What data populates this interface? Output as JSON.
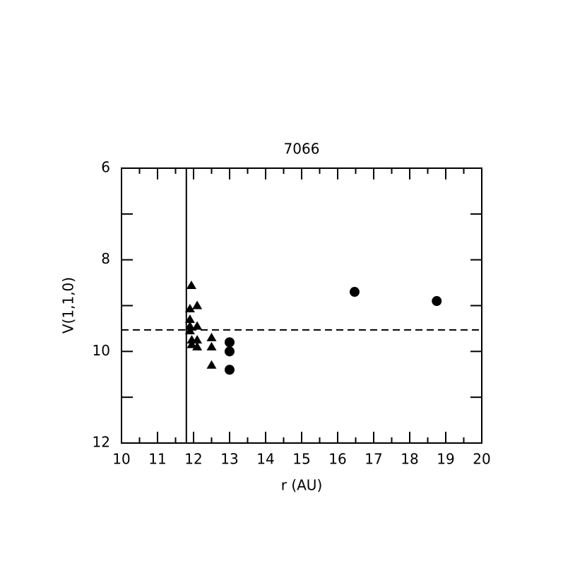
{
  "chart_data": {
    "type": "scatter",
    "title": "7066",
    "x_label": "r (AU)",
    "y_label": "V(1,1,0)",
    "xlim": [
      10,
      20
    ],
    "xticks": [
      10,
      11,
      12,
      13,
      14,
      15,
      16,
      17,
      18,
      19,
      20
    ],
    "xminorticks": [
      10.5,
      11.5,
      12.5,
      13.5,
      14.5,
      15.5,
      16.5,
      17.5,
      18.5,
      19.5
    ],
    "ylim": [
      12,
      6
    ],
    "yticks": [
      6,
      8,
      10,
      12
    ],
    "yminorticks": [
      7,
      9,
      11
    ],
    "vline": 11.8,
    "hline": 9.53,
    "series": [
      {
        "marker": "triangle",
        "color": "#000000",
        "x": [
          11.94,
          12.1,
          11.9,
          11.9,
          12.1,
          11.9,
          11.9,
          11.95,
          12.1,
          11.95,
          12.1,
          12.5,
          12.5,
          12.5
        ],
        "values": [
          8.56,
          9.0,
          9.07,
          9.3,
          9.45,
          9.45,
          9.55,
          9.75,
          9.75,
          9.85,
          9.9,
          9.7,
          9.9,
          10.3
        ]
      },
      {
        "marker": "circle",
        "color": "#000000",
        "x": [
          13.0,
          13.0,
          13.0,
          16.47,
          18.75
        ],
        "values": [
          9.8,
          10.0,
          10.4,
          8.7,
          8.9
        ]
      }
    ]
  }
}
